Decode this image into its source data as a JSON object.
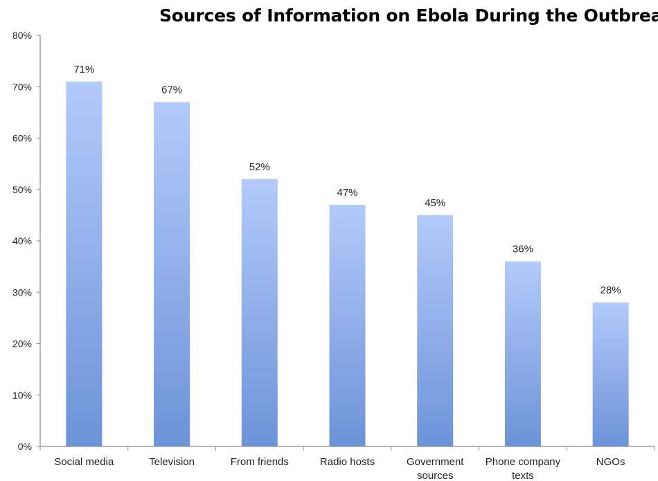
{
  "chart_data": {
    "type": "bar",
    "title": "Sources of Information on Ebola During the Outbreak",
    "xlabel": "",
    "ylabel": "",
    "categories": [
      "Social media",
      "Television",
      "From friends",
      "Radio hosts",
      "Government sources",
      "Phone company texts",
      "NGOs"
    ],
    "category_lines": [
      [
        "Social media"
      ],
      [
        "Television"
      ],
      [
        "From friends"
      ],
      [
        "Radio hosts"
      ],
      [
        "Government",
        "sources"
      ],
      [
        "Phone company",
        "texts"
      ],
      [
        "NGOs"
      ]
    ],
    "values": [
      71,
      67,
      52,
      47,
      45,
      36,
      28
    ],
    "data_labels": [
      "71%",
      "67%",
      "52%",
      "47%",
      "45%",
      "36%",
      "28%"
    ],
    "ylim": [
      0,
      80
    ],
    "yticks": [
      0,
      10,
      20,
      30,
      40,
      50,
      60,
      70,
      80
    ],
    "ytick_labels": [
      "0%",
      "10%",
      "20%",
      "30%",
      "40%",
      "50%",
      "60%",
      "70%",
      "80%"
    ],
    "grid": false,
    "legend": "none",
    "colors": {
      "bar_top": "#b3cafa",
      "bar_bottom": "#6c93d8",
      "axis": "#8c8c8c"
    }
  }
}
